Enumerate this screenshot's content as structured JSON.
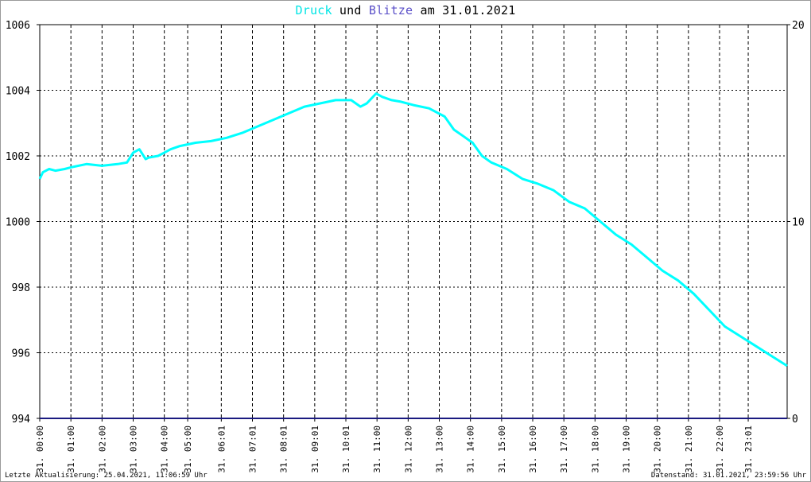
{
  "title": {
    "series1": "Druck",
    "conj": "und",
    "series2": "Blitze",
    "date_prefix": "am",
    "date": "31.01.2021"
  },
  "footer": {
    "left": "Letzte Aktualisierung: 25.04.2021, 11:06:59 Uhr",
    "right": "Datenstand: 31.01.2021, 23:59:56 Uhr"
  },
  "colors": {
    "druck": "#00ffff",
    "blitze": "#1a1a80",
    "grid": "#000000"
  },
  "chart_data": {
    "type": "line",
    "title": "Druck und Blitze am 31.01.2021",
    "xlabel": "",
    "ylabel": "",
    "x_range_hours": [
      0,
      24
    ],
    "left_axis": {
      "ylim": [
        994,
        1006
      ],
      "ticks": [
        "994",
        "996",
        "998",
        "1000",
        "1002",
        "1004",
        "1006"
      ]
    },
    "right_axis": {
      "ylim": [
        0,
        20
      ],
      "ticks": [
        "0",
        "10",
        "20"
      ]
    },
    "x_tick_labels": [
      "31. 00:00",
      "31. 01:00",
      "31. 02:00",
      "31. 03:00",
      "31. 04:00",
      "31. 05:00",
      "31. 06:01",
      "31. 07:01",
      "31. 08:01",
      "31. 09:01",
      "31. 10:01",
      "31. 11:00",
      "31. 12:00",
      "31. 13:00",
      "31. 14:00",
      "31. 15:00",
      "31. 16:00",
      "31. 17:00",
      "31. 18:00",
      "31. 19:00",
      "31. 20:00",
      "31. 21:00",
      "31. 22:00",
      "31. 23:01"
    ],
    "x_tick_hours": [
      0,
      1,
      2,
      3,
      4,
      4.75,
      5.83,
      6.83,
      7.83,
      8.83,
      9.83,
      10.83,
      11.83,
      12.83,
      13.83,
      14.83,
      15.83,
      16.83,
      17.83,
      18.83,
      19.83,
      20.83,
      21.83,
      22.75
    ],
    "grid": true,
    "series": [
      {
        "name": "Druck",
        "axis": "left",
        "x": [
          0,
          0.1,
          0.3,
          0.5,
          0.8,
          1.0,
          1.5,
          2.0,
          2.5,
          2.8,
          3.0,
          3.2,
          3.4,
          3.5,
          3.8,
          4.0,
          4.2,
          4.5,
          5.0,
          5.5,
          6.0,
          6.5,
          7.0,
          7.5,
          8.0,
          8.5,
          9.0,
          9.5,
          10.0,
          10.3,
          10.5,
          10.8,
          11.0,
          11.3,
          11.6,
          12.0,
          12.5,
          13.0,
          13.3,
          13.6,
          13.9,
          14.2,
          14.5,
          15.0,
          15.5,
          16.0,
          16.5,
          17.0,
          17.5,
          18.0,
          18.5,
          19.0,
          19.5,
          20.0,
          20.5,
          21.0,
          21.5,
          22.0,
          22.5,
          23.0,
          23.5,
          24.0
        ],
        "values": [
          1001.3,
          1001.5,
          1001.6,
          1001.55,
          1001.6,
          1001.65,
          1001.75,
          1001.7,
          1001.75,
          1001.8,
          1002.1,
          1002.2,
          1001.9,
          1001.95,
          1002.0,
          1002.1,
          1002.2,
          1002.3,
          1002.4,
          1002.45,
          1002.55,
          1002.7,
          1002.9,
          1003.1,
          1003.3,
          1003.5,
          1003.6,
          1003.7,
          1003.7,
          1003.5,
          1003.6,
          1003.9,
          1003.8,
          1003.7,
          1003.65,
          1003.55,
          1003.45,
          1003.2,
          1002.8,
          1002.6,
          1002.4,
          1002.0,
          1001.8,
          1001.6,
          1001.3,
          1001.15,
          1000.95,
          1000.6,
          1000.4,
          1000.0,
          999.6,
          999.3,
          998.9,
          998.5,
          998.2,
          997.8,
          997.3,
          996.8,
          996.5,
          996.2,
          995.9,
          995.6
        ]
      },
      {
        "name": "Blitze",
        "axis": "right",
        "x": [
          0,
          24
        ],
        "values": [
          0,
          0
        ]
      }
    ]
  }
}
